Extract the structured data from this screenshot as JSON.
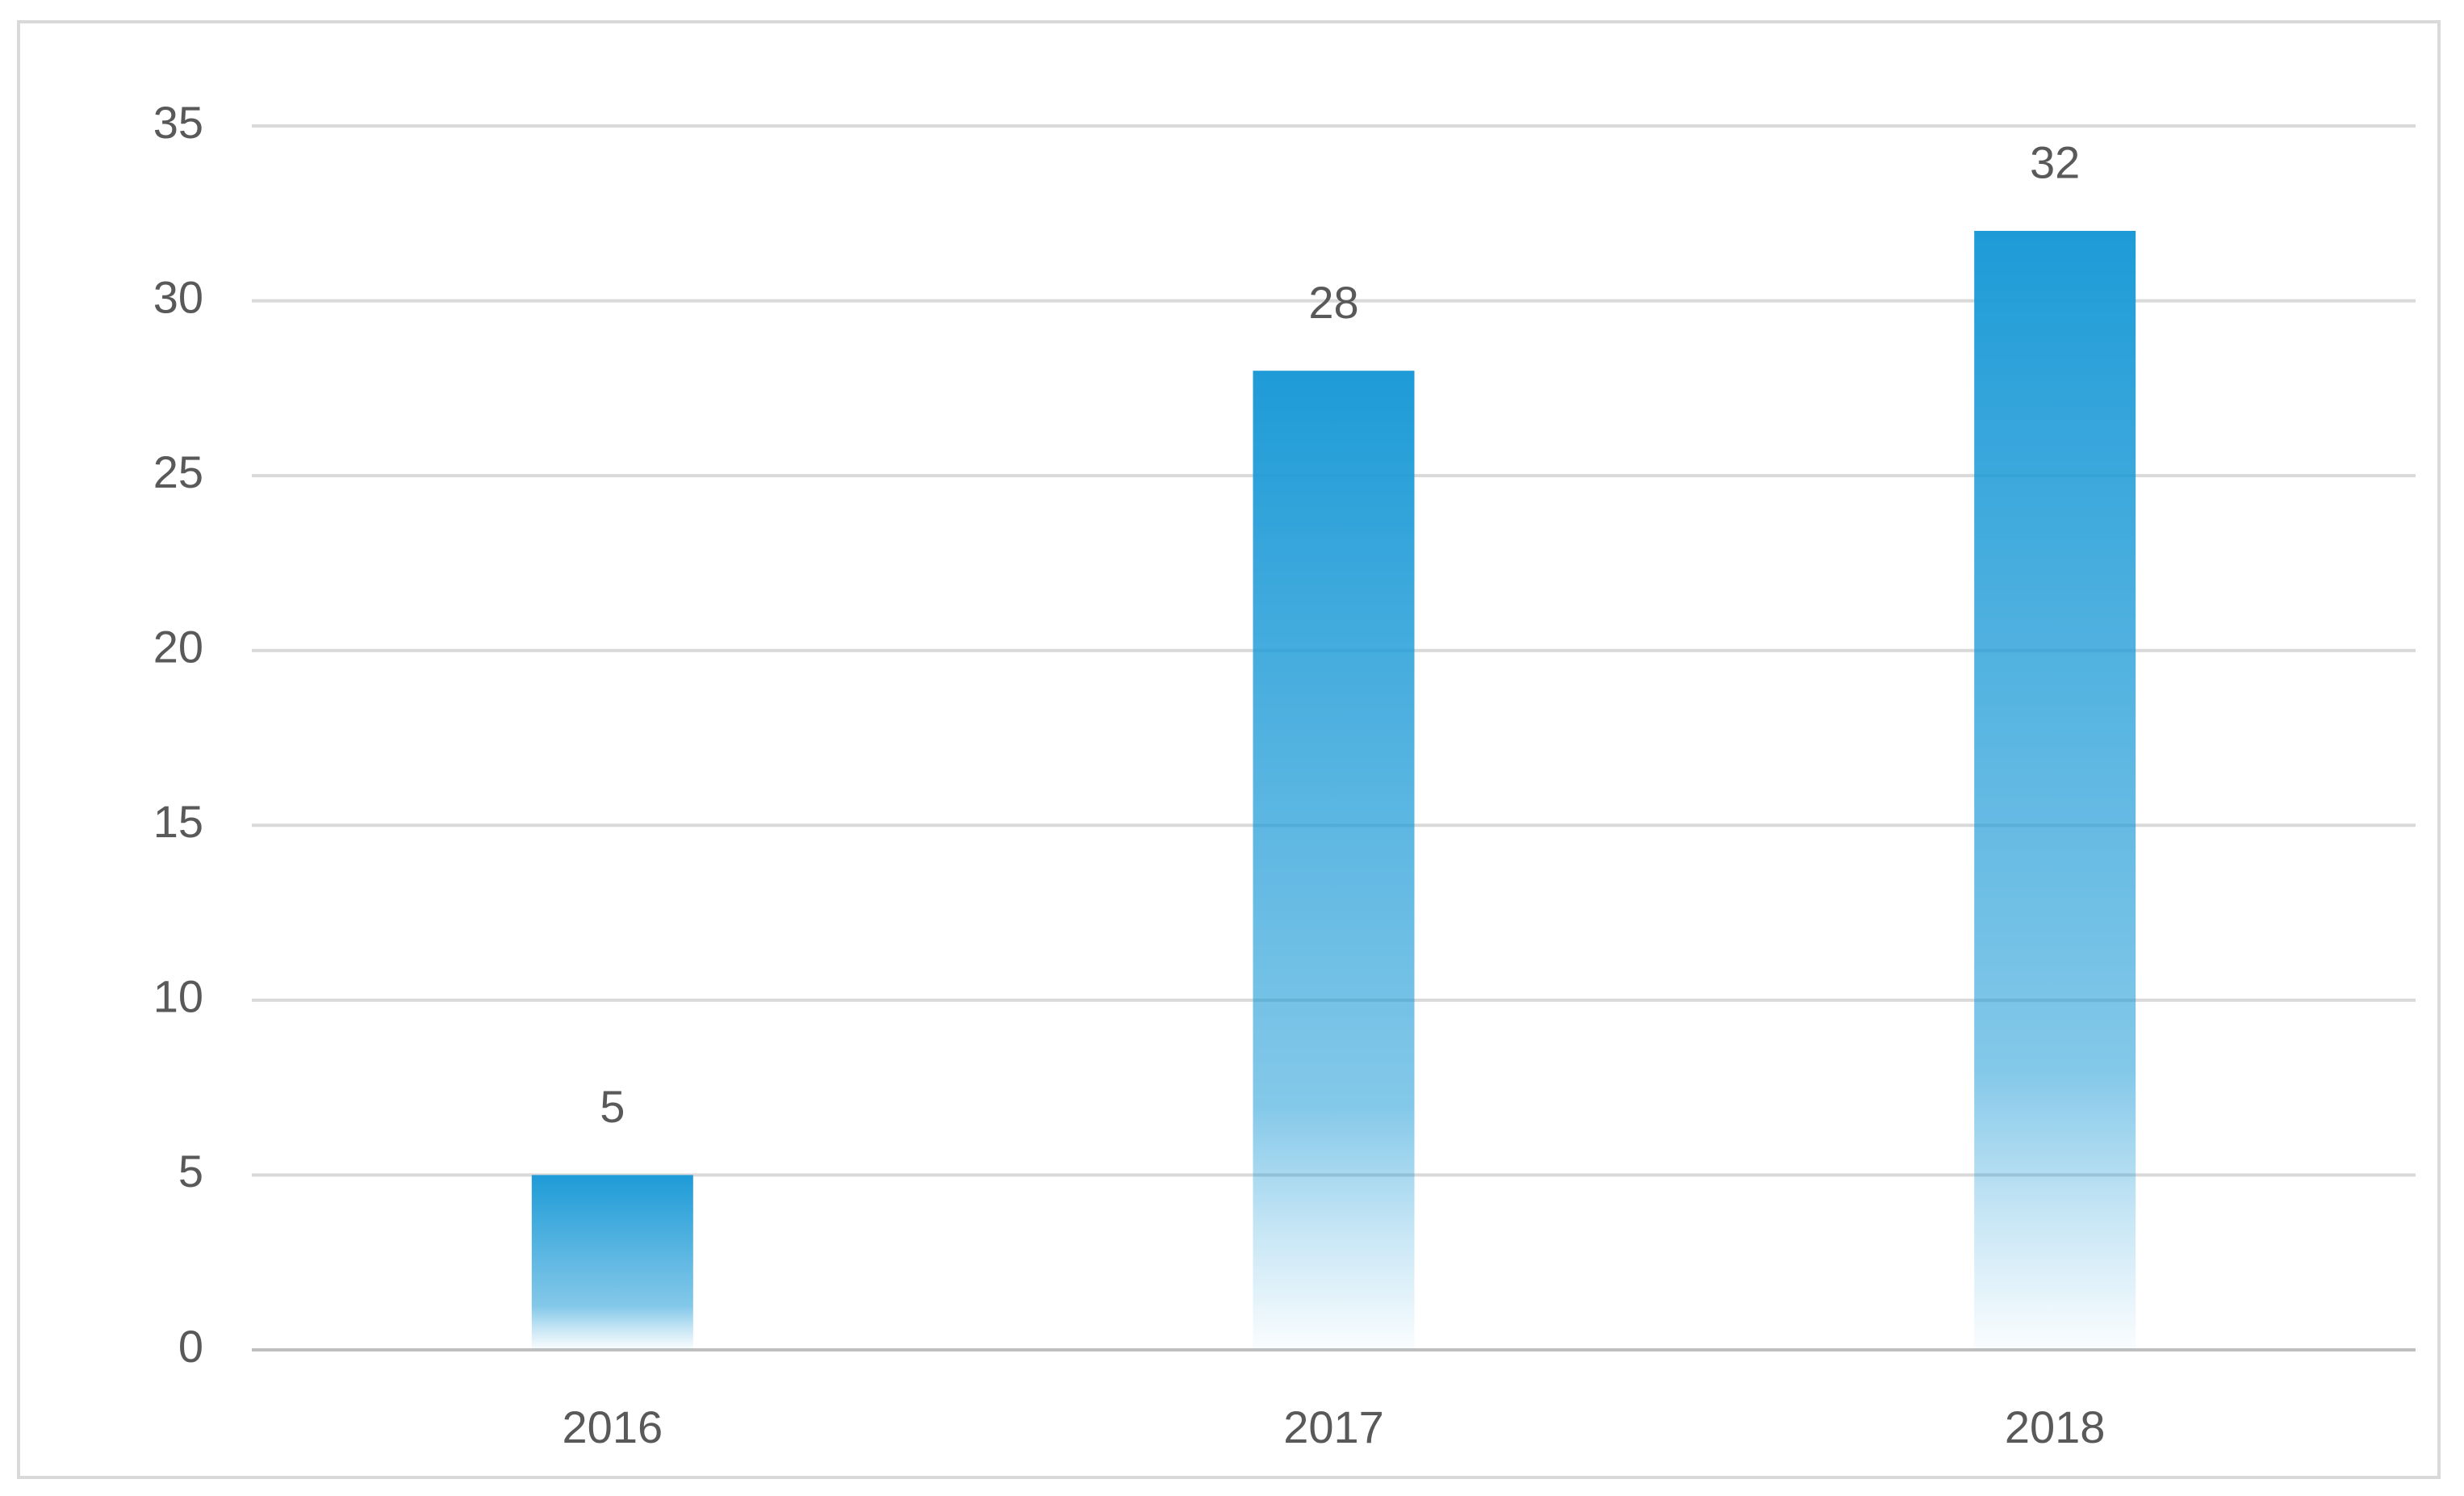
{
  "chart_data": {
    "type": "bar",
    "categories": [
      "2016",
      "2017",
      "2018"
    ],
    "values": [
      5,
      28,
      32
    ],
    "color": "#1e9bd7",
    "ylim": [
      0,
      35
    ],
    "yticks": [
      0,
      5,
      10,
      15,
      20,
      25,
      30,
      35
    ],
    "grid": true
  }
}
